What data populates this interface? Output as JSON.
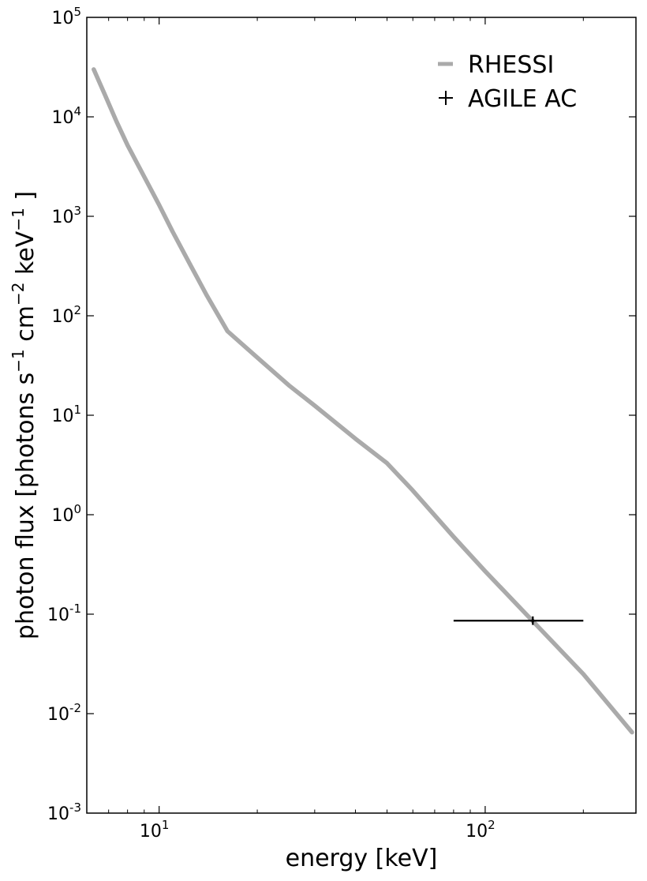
{
  "chart_data": {
    "type": "line",
    "title": "",
    "xlabel": "energy [keV]",
    "ylabel_parts": {
      "prefix": "photon flux [photons s",
      "sup1": "−1",
      "mid": "  cm",
      "sup2": "−2",
      "mid2": "  keV",
      "sup3": "−1",
      "suffix": " ]"
    },
    "xscale": "log",
    "yscale": "log",
    "xlim": [
      6,
      290
    ],
    "ylim": [
      0.001,
      100000
    ],
    "x_ticks": [
      {
        "value": 10,
        "base": "10",
        "exp": "1"
      },
      {
        "value": 100,
        "base": "10",
        "exp": "2"
      }
    ],
    "y_ticks": [
      {
        "value": 0.001,
        "base": "10",
        "exp": "-3"
      },
      {
        "value": 0.01,
        "base": "10",
        "exp": "-2"
      },
      {
        "value": 0.1,
        "base": "10",
        "exp": "-1"
      },
      {
        "value": 1,
        "base": "10",
        "exp": "0"
      },
      {
        "value": 10,
        "base": "10",
        "exp": "1"
      },
      {
        "value": 100,
        "base": "10",
        "exp": "2"
      },
      {
        "value": 1000,
        "base": "10",
        "exp": "3"
      },
      {
        "value": 10000,
        "base": "10",
        "exp": "4"
      },
      {
        "value": 100000,
        "base": "10",
        "exp": "5"
      }
    ],
    "grid": false,
    "legend_position": "top-right",
    "series": [
      {
        "name": "RHESSI",
        "kind": "line",
        "color": "#aaaaaa",
        "x": [
          6.3,
          6.8,
          7.4,
          8.0,
          9.0,
          10.0,
          11.0,
          12.5,
          14.0,
          16.2,
          20.0,
          25.0,
          30.0,
          40.0,
          50.0,
          60.0,
          80.0,
          100.0,
          140.0,
          200.0,
          282.0
        ],
        "y": [
          30000,
          17000,
          9000,
          5200,
          2500,
          1300,
          700,
          320,
          160,
          70,
          38,
          20,
          12.5,
          5.8,
          3.3,
          1.75,
          0.6,
          0.27,
          0.085,
          0.025,
          0.0065
        ]
      },
      {
        "name": "AGILE AC",
        "kind": "errorbar",
        "color": "#000000",
        "x": [
          140
        ],
        "y": [
          0.086
        ],
        "xerr_range": [
          80,
          200
        ],
        "yerr_range": [
          0.078,
          0.095
        ]
      }
    ]
  }
}
